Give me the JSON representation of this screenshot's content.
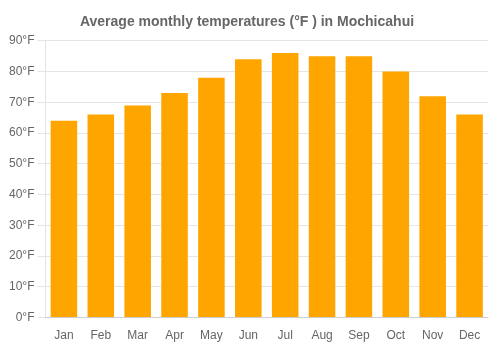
{
  "chart_data": {
    "type": "bar",
    "title": "Average monthly temperatures (°F ) in Mochicahui",
    "categories": [
      "Jan",
      "Feb",
      "Mar",
      "Apr",
      "May",
      "Jun",
      "Jul",
      "Aug",
      "Sep",
      "Oct",
      "Nov",
      "Dec"
    ],
    "values": [
      64,
      66,
      69,
      73,
      78,
      84,
      86,
      85,
      85,
      80,
      72,
      66
    ],
    "color": "#FFA500",
    "ylim": [
      0,
      90
    ],
    "yticks": [
      {
        "value": 0,
        "label": "0°F"
      },
      {
        "value": 10,
        "label": "10°F"
      },
      {
        "value": 20,
        "label": "20°F"
      },
      {
        "value": 30,
        "label": "30°F"
      },
      {
        "value": 40,
        "label": "40°F"
      },
      {
        "value": 50,
        "label": "50°F"
      },
      {
        "value": 60,
        "label": "60°F"
      },
      {
        "value": 70,
        "label": "70°F"
      },
      {
        "value": 80,
        "label": "80°F"
      },
      {
        "value": 90,
        "label": "90°F"
      }
    ],
    "grid": true
  }
}
